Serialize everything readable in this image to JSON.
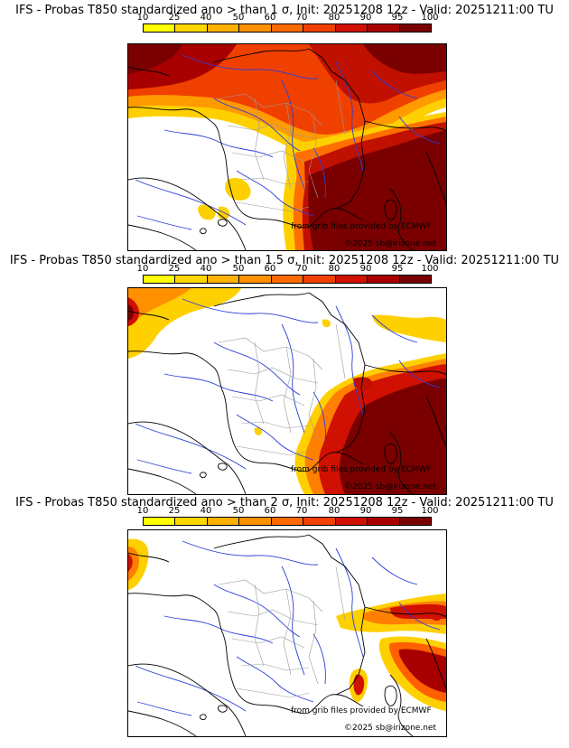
{
  "panels": [
    {
      "title": "IFS - Probas T850  standardized ano > than 1 σ, Init: 20251208 12z - Valid: 20251211:00 TU",
      "credit_source": "from grib files provided by ECMWF",
      "credit_copyright": "©2025 sb@irizone.net"
    },
    {
      "title": "IFS - Probas T850  standardized ano > than 1.5 σ, Init: 20251208 12z - Valid: 20251211:00 TU",
      "credit_source": "from grib files provided by ECMWF",
      "credit_copyright": "©2025 sb@irizone.net"
    },
    {
      "title": "IFS - Probas T850  standardized ano > than 2 σ, Init: 20251208 12z - Valid: 20251211:00 TU",
      "credit_source": "from grib files provided by ECMWF",
      "credit_copyright": "©2025 sb@irizone.net"
    }
  ],
  "scale": {
    "labels": [
      "10",
      "25",
      "40",
      "50",
      "60",
      "70",
      "80",
      "90",
      "95",
      "100"
    ],
    "colors": [
      "#ffff00",
      "#ffd700",
      "#ffb000",
      "#ff9000",
      "#ff6a00",
      "#f04000",
      "#d01000",
      "#a80000",
      "#7a0000"
    ]
  }
}
